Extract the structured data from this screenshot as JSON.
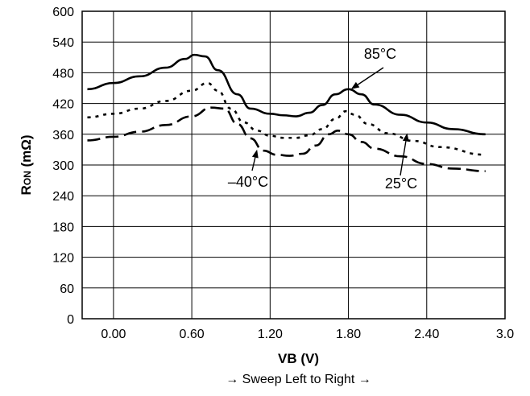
{
  "chart_data": {
    "type": "line",
    "xlabel": "VB (V)",
    "xlabel_note": "→ Sweep Left to Right →",
    "ylabel": "RON (mΩ)",
    "ylabel_main": "R",
    "ylabel_sub": "ON",
    "ylabel_unit": " (mΩ)",
    "xlim": [
      -0.24,
      3.0
    ],
    "ylim": [
      0,
      600
    ],
    "x_ticks": [
      0.0,
      0.6,
      1.2,
      1.8,
      2.4,
      3.0
    ],
    "x_tick_labels": [
      "0.00",
      "0.60",
      "1.20",
      "1.80",
      "2.40",
      "3.0"
    ],
    "y_ticks": [
      0,
      60,
      120,
      180,
      240,
      300,
      360,
      420,
      480,
      540,
      600
    ],
    "y_tick_labels": [
      "0",
      "60",
      "120",
      "180",
      "240",
      "300",
      "360",
      "420",
      "480",
      "540",
      "600"
    ],
    "grid": true,
    "series": [
      {
        "name": "85°C",
        "style": "solid",
        "x": [
          -0.2,
          0.0,
          0.2,
          0.4,
          0.55,
          0.62,
          0.7,
          0.8,
          0.95,
          1.05,
          1.2,
          1.3,
          1.4,
          1.5,
          1.6,
          1.7,
          1.8,
          1.9,
          2.0,
          2.2,
          2.4,
          2.6,
          2.85
        ],
        "y": [
          448,
          460,
          473,
          490,
          507,
          515,
          512,
          485,
          438,
          410,
          400,
          397,
          395,
          402,
          417,
          438,
          448,
          438,
          418,
          398,
          383,
          370,
          360
        ]
      },
      {
        "name": "25°C",
        "style": "dotted",
        "x": [
          -0.2,
          0.0,
          0.2,
          0.4,
          0.6,
          0.72,
          0.8,
          0.9,
          1.0,
          1.1,
          1.2,
          1.3,
          1.4,
          1.5,
          1.6,
          1.7,
          1.78,
          1.85,
          1.95,
          2.1,
          2.3,
          2.5,
          2.85
        ],
        "y": [
          393,
          400,
          410,
          425,
          445,
          460,
          445,
          410,
          383,
          367,
          357,
          353,
          353,
          358,
          370,
          390,
          405,
          398,
          380,
          362,
          347,
          335,
          320
        ]
      },
      {
        "name": "–40°C",
        "style": "dashed",
        "x": [
          -0.2,
          0.0,
          0.2,
          0.4,
          0.6,
          0.75,
          0.85,
          0.95,
          1.05,
          1.15,
          1.25,
          1.35,
          1.45,
          1.55,
          1.65,
          1.72,
          1.8,
          1.9,
          2.0,
          2.2,
          2.4,
          2.6,
          2.85
        ],
        "y": [
          348,
          355,
          365,
          378,
          395,
          412,
          410,
          380,
          352,
          328,
          320,
          318,
          322,
          338,
          360,
          367,
          360,
          345,
          332,
          317,
          302,
          293,
          288
        ]
      }
    ],
    "annotations": [
      {
        "text": "85°C",
        "series": "85°C",
        "arrow_to": [
          1.82,
          448
        ]
      },
      {
        "text": "25°C",
        "series": "25°C",
        "arrow_to": [
          2.25,
          362
        ]
      },
      {
        "text": "–40°C",
        "series": "–40°C",
        "arrow_to": [
          1.1,
          330
        ]
      }
    ]
  }
}
